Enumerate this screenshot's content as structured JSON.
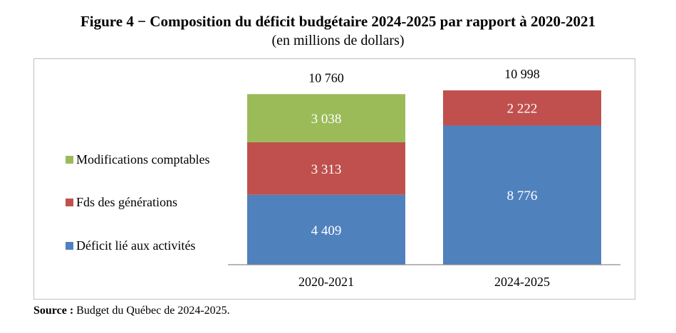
{
  "chart_data": {
    "type": "bar",
    "stacked": true,
    "title": "Figure 4 − Composition du déficit budgétaire 2024-2025 par rapport à 2020-2021",
    "subtitle": "(en millions de dollars)",
    "categories": [
      "2020-2021",
      "2024-2025"
    ],
    "series": [
      {
        "name": "Déficit lié aux activités",
        "color": "#4f81bd",
        "values": [
          4409,
          8776
        ],
        "labels": [
          "4 409",
          "8 776"
        ]
      },
      {
        "name": "Fds des générations",
        "color": "#c0504d",
        "values": [
          3313,
          2222
        ],
        "labels": [
          "3 313",
          "2 222"
        ]
      },
      {
        "name": "Modifications comptables",
        "color": "#9bbb59",
        "values": [
          3038,
          null
        ],
        "labels": [
          "3 038",
          ""
        ]
      }
    ],
    "totals": [
      10760,
      10998
    ],
    "total_labels": [
      "10 760",
      "10 998"
    ],
    "legend_position": "left",
    "grid": false
  },
  "source": {
    "label": "Source :",
    "text": " Budget du Québec de 2024-2025."
  }
}
